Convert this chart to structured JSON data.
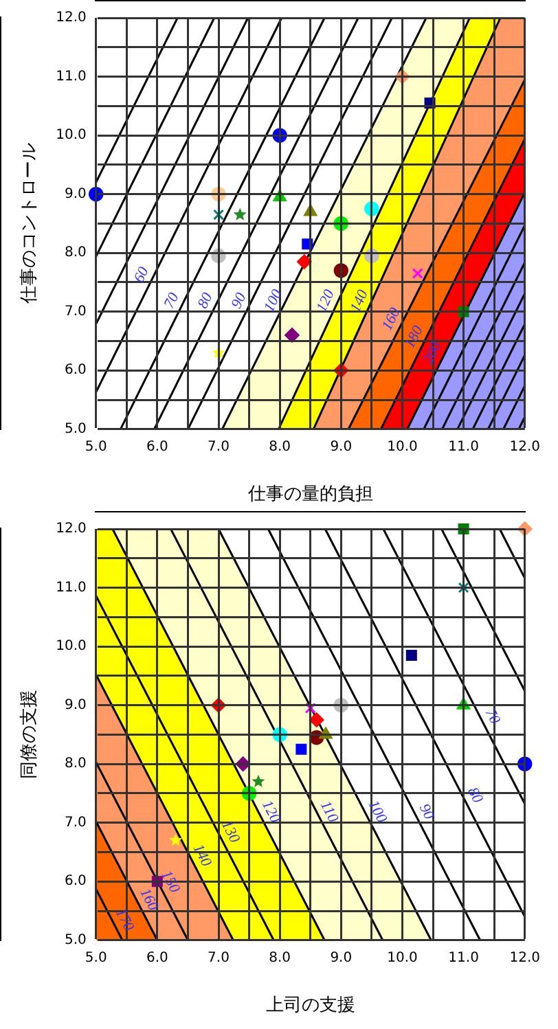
{
  "chart_data": [
    {
      "type": "scatter",
      "xlabel": "仕事の量的負担",
      "ylabel": "仕事のコントロール",
      "xlim": [
        5,
        12
      ],
      "ylim": [
        5,
        12
      ],
      "grid": true,
      "xticks": [
        {
          "value": 5,
          "label": "5.0"
        },
        {
          "value": 5.5,
          "label": null
        },
        {
          "value": 6,
          "label": "6.0"
        },
        {
          "value": 6.5,
          "label": null
        },
        {
          "value": 7,
          "label": "7.0"
        },
        {
          "value": 7.5,
          "label": null
        },
        {
          "value": 8,
          "label": "8.0"
        },
        {
          "value": 8.5,
          "label": null
        },
        {
          "value": 9,
          "label": "9.0"
        },
        {
          "value": 9.5,
          "label": null
        },
        {
          "value": 10,
          "label": "10.0"
        },
        {
          "value": 10.5,
          "label": null
        },
        {
          "value": 11,
          "label": "11.0"
        },
        {
          "value": 11.5,
          "label": null
        },
        {
          "value": 12,
          "label": "12.0"
        }
      ],
      "yticks": [
        {
          "value": 5,
          "label": "5.0"
        },
        {
          "value": 5.5,
          "label": null
        },
        {
          "value": 6,
          "label": "6.0"
        },
        {
          "value": 6.5,
          "label": null
        },
        {
          "value": 7,
          "label": "7.0"
        },
        {
          "value": 7.5,
          "label": null
        },
        {
          "value": 8,
          "label": "8.0"
        },
        {
          "value": 8.5,
          "label": null
        },
        {
          "value": 9,
          "label": "9.0"
        },
        {
          "value": 9.5,
          "label": null
        },
        {
          "value": 10,
          "label": "10.0"
        },
        {
          "value": 10.5,
          "label": null
        },
        {
          "value": 11,
          "label": "11.0"
        },
        {
          "value": 11.5,
          "label": null
        },
        {
          "value": 12,
          "label": "12.0"
        }
      ],
      "series": [
        {
          "type": "area",
          "name": "100",
          "x": [
            7.06,
            10.39,
            12
          ],
          "values": [
            5,
            12,
            12
          ],
          "color": "#ffffcc"
        },
        {
          "type": "area",
          "name": "120",
          "x": [
            7.98,
            11.1,
            12
          ],
          "values": [
            5,
            12,
            12
          ],
          "color": "#ffff00"
        },
        {
          "type": "area",
          "name": "140",
          "x": [
            8.55,
            11.6,
            12
          ],
          "values": [
            5,
            12,
            12
          ],
          "color": "#ff9966"
        },
        {
          "type": "area",
          "name": "160",
          "x": [
            9.12,
            12
          ],
          "values": [
            5,
            10.95
          ],
          "color": "#ff6600"
        },
        {
          "type": "area",
          "name": "180",
          "x": [
            9.65,
            12
          ],
          "values": [
            5,
            9.94
          ],
          "color": "#ff0000"
        },
        {
          "type": "area",
          "name": "200",
          "x": [
            10.08,
            12
          ],
          "values": [
            5,
            9.03
          ],
          "color": "#9999ff"
        },
        {
          "type": "line",
          "name": "60",
          "x": [
            5,
            8.03
          ],
          "values": [
            5.63,
            12
          ],
          "color": "#000000"
        },
        {
          "type": "line",
          "name": "70",
          "x": [
            5.4,
            8.73
          ],
          "values": [
            5,
            12
          ],
          "color": "#000000"
        },
        {
          "type": "line",
          "name": "80",
          "x": [
            5.95,
            9.28
          ],
          "values": [
            5,
            12
          ],
          "color": "#000000"
        },
        {
          "type": "line",
          "name": "90",
          "x": [
            6.5,
            9.83
          ],
          "values": [
            5,
            12
          ],
          "color": "#000000"
        },
        {
          "type": "line",
          "x": [
            5,
            6.33
          ],
          "values": [
            9.2,
            12
          ],
          "color": "#000000"
        },
        {
          "type": "line",
          "x": [
            5,
            6.93
          ],
          "values": [
            7.94,
            12
          ],
          "color": "#000000"
        },
        {
          "type": "line",
          "x": [
            5,
            7.48
          ],
          "values": [
            6.79,
            12
          ],
          "color": "#000000"
        },
        {
          "type": "line",
          "x": [
            10.35,
            12
          ],
          "values": [
            5,
            8.47
          ],
          "color": "#000000"
        },
        {
          "type": "line",
          "x": [
            10.65,
            12
          ],
          "values": [
            5,
            7.84
          ],
          "color": "#000000"
        },
        {
          "type": "line",
          "x": [
            10.9,
            12
          ],
          "values": [
            5,
            7.31
          ],
          "color": "#000000"
        },
        {
          "type": "line",
          "x": [
            11.15,
            12
          ],
          "values": [
            5,
            6.79
          ],
          "color": "#000000"
        },
        {
          "type": "line",
          "x": [
            11.4,
            12
          ],
          "values": [
            5,
            6.26
          ],
          "color": "#000000"
        },
        {
          "type": "line",
          "x": [
            11.65,
            12
          ],
          "values": [
            5,
            5.74
          ],
          "color": "#000000"
        },
        {
          "type": "line",
          "x": [
            11.9,
            12
          ],
          "values": [
            5,
            5.21
          ],
          "color": "#000000"
        },
        {
          "type": "scatter",
          "x": [
            8.0,
            5.0
          ],
          "values": [
            10.0,
            9.0
          ],
          "color": "#0000ff",
          "marker": "circle"
        },
        {
          "type": "scatter",
          "x": [
            10.45
          ],
          "values": [
            10.55
          ],
          "color": "#000080",
          "marker": "square"
        },
        {
          "type": "scatter",
          "x": [
            10.0
          ],
          "values": [
            11.0
          ],
          "color": "#ff9966",
          "marker": "diamond"
        },
        {
          "type": "scatter",
          "x": [
            7.0
          ],
          "values": [
            9.0
          ],
          "color": "#ffcc99",
          "marker": "circle"
        },
        {
          "type": "scatter",
          "x": [
            7.0
          ],
          "values": [
            8.65
          ],
          "color": "#008080",
          "marker": "cross"
        },
        {
          "type": "scatter",
          "x": [
            7.35
          ],
          "values": [
            8.65
          ],
          "color": "#228b22",
          "marker": "star"
        },
        {
          "type": "scatter",
          "x": [
            8.0
          ],
          "values": [
            8.95
          ],
          "color": "#00cc00",
          "marker": "triangle"
        },
        {
          "type": "scatter",
          "x": [
            8.5
          ],
          "values": [
            8.7
          ],
          "color": "#808000",
          "marker": "triangle"
        },
        {
          "type": "scatter",
          "x": [
            9.5
          ],
          "values": [
            8.75
          ],
          "color": "#00ffff",
          "marker": "circle"
        },
        {
          "type": "scatter",
          "x": [
            9.0
          ],
          "values": [
            8.5
          ],
          "color": "#00ee00",
          "marker": "circle"
        },
        {
          "type": "scatter",
          "x": [
            8.45
          ],
          "values": [
            8.15
          ],
          "color": "#0000ff",
          "marker": "square"
        },
        {
          "type": "scatter",
          "x": [
            8.4
          ],
          "values": [
            7.85
          ],
          "color": "#ff0000",
          "marker": "diamond"
        },
        {
          "type": "scatter",
          "x": [
            7.0,
            9.5
          ],
          "values": [
            7.95,
            7.95
          ],
          "color": "#c0c0c0",
          "marker": "circle"
        },
        {
          "type": "scatter",
          "x": [
            9.0
          ],
          "values": [
            7.7
          ],
          "color": "#800000",
          "marker": "circle"
        },
        {
          "type": "scatter",
          "x": [
            10.25
          ],
          "values": [
            7.65
          ],
          "color": "#ff00ff",
          "marker": "cross"
        },
        {
          "type": "scatter",
          "x": [
            8.2
          ],
          "values": [
            6.6
          ],
          "color": "#800080",
          "marker": "diamond"
        },
        {
          "type": "scatter",
          "x": [
            7.0
          ],
          "values": [
            6.3
          ],
          "color": "#ffff00",
          "marker": "star"
        },
        {
          "type": "scatter",
          "x": [
            9.0
          ],
          "values": [
            6.0
          ],
          "color": "#ff0000",
          "marker": "diamond"
        },
        {
          "type": "scatter",
          "x": [
            11.0
          ],
          "values": [
            7.0
          ],
          "color": "#008000",
          "marker": "square"
        }
      ]
    },
    {
      "type": "scatter",
      "xlabel": "上司の支援",
      "ylabel": "同僚の支援",
      "xlim": [
        5,
        12
      ],
      "ylim": [
        5,
        12
      ],
      "grid": true,
      "xticks": [
        {
          "value": 5,
          "label": "5.0"
        },
        {
          "value": 5.5,
          "label": null
        },
        {
          "value": 6,
          "label": "6.0"
        },
        {
          "value": 6.5,
          "label": null
        },
        {
          "value": 7,
          "label": "7.0"
        },
        {
          "value": 7.5,
          "label": null
        },
        {
          "value": 8,
          "label": "8.0"
        },
        {
          "value": 8.5,
          "label": null
        },
        {
          "value": 9,
          "label": "9.0"
        },
        {
          "value": 9.5,
          "label": null
        },
        {
          "value": 10,
          "label": "10.0"
        },
        {
          "value": 10.5,
          "label": null
        },
        {
          "value": 11,
          "label": "11.0"
        },
        {
          "value": 11.5,
          "label": null
        },
        {
          "value": 12,
          "label": "12.0"
        }
      ],
      "yticks": [
        {
          "value": 5,
          "label": "5.0"
        },
        {
          "value": 5.5,
          "label": null
        },
        {
          "value": 6,
          "label": "6.0"
        },
        {
          "value": 6.5,
          "label": null
        },
        {
          "value": 7,
          "label": "7.0"
        },
        {
          "value": 7.5,
          "label": null
        },
        {
          "value": 8,
          "label": "8.0"
        },
        {
          "value": 8.5,
          "label": null
        },
        {
          "value": 9,
          "label": "9.0"
        },
        {
          "value": 9.5,
          "label": null
        },
        {
          "value": 10,
          "label": "10.0"
        },
        {
          "value": 10.5,
          "label": null
        },
        {
          "value": 11,
          "label": "11.0"
        },
        {
          "value": 11.5,
          "label": null
        },
        {
          "value": 12,
          "label": "12.0"
        }
      ],
      "series": [
        {
          "type": "area",
          "name": "100",
          "x": [
            5,
            7.0,
            10.47
          ],
          "values": [
            12,
            12,
            5
          ],
          "color": "#ffffcc"
        },
        {
          "type": "area",
          "name": "120",
          "x": [
            5,
            5.27,
            8.73
          ],
          "values": [
            12,
            12,
            5
          ],
          "color": "#ffff00"
        },
        {
          "type": "area",
          "name": "140",
          "x": [
            5,
            7.24
          ],
          "values": [
            9.52,
            5
          ],
          "color": "#ff9966"
        },
        {
          "type": "area",
          "name": "160",
          "x": [
            5,
            6.0
          ],
          "values": [
            7.02,
            5
          ],
          "color": "#ff6600"
        },
        {
          "type": "line",
          "name": "170",
          "x": [
            5,
            5.43
          ],
          "values": [
            5.87,
            5
          ],
          "color": "#000000"
        },
        {
          "type": "line",
          "name": "150",
          "x": [
            5,
            6.5
          ],
          "values": [
            8.03,
            5
          ],
          "color": "#000000"
        },
        {
          "type": "line",
          "name": "130",
          "x": [
            5,
            7.9
          ],
          "values": [
            10.86,
            5
          ],
          "color": "#000000"
        },
        {
          "type": "line",
          "name": "110",
          "x": [
            6.22,
            9.68
          ],
          "values": [
            12,
            5
          ],
          "color": "#000000"
        },
        {
          "type": "line",
          "name": "90",
          "x": [
            7.81,
            11.27
          ],
          "values": [
            12,
            5
          ],
          "color": "#000000"
        },
        {
          "type": "line",
          "name": "80",
          "x": [
            8.74,
            12
          ],
          "values": [
            12,
            5.4
          ],
          "color": "#000000"
        },
        {
          "type": "line",
          "name": "70",
          "x": [
            9.69,
            12
          ],
          "values": [
            12,
            7.32
          ],
          "color": "#000000"
        },
        {
          "type": "line",
          "x": [
            10.64,
            12
          ],
          "values": [
            12,
            9.24
          ],
          "color": "#000000"
        },
        {
          "type": "line",
          "x": [
            11.59,
            12
          ],
          "values": [
            12,
            11.16
          ],
          "color": "#000000"
        },
        {
          "type": "scatter",
          "x": [
            11.0
          ],
          "values": [
            12.0
          ],
          "color": "#008000",
          "marker": "square"
        },
        {
          "type": "scatter",
          "x": [
            12.0
          ],
          "values": [
            12.0
          ],
          "color": "#ff9966",
          "marker": "diamond"
        },
        {
          "type": "scatter",
          "x": [
            11.0
          ],
          "values": [
            11.0
          ],
          "color": "#008080",
          "marker": "cross"
        },
        {
          "type": "scatter",
          "x": [
            10.15
          ],
          "values": [
            9.85
          ],
          "color": "#000080",
          "marker": "square"
        },
        {
          "type": "scatter",
          "x": [
            11.0
          ],
          "values": [
            9.0
          ],
          "color": "#00cc00",
          "marker": "triangle"
        },
        {
          "type": "scatter",
          "x": [
            12.0
          ],
          "values": [
            8.0
          ],
          "color": "#0000ff",
          "marker": "circle"
        },
        {
          "type": "scatter",
          "x": [
            7.0
          ],
          "values": [
            9.0
          ],
          "color": "#ff0000",
          "marker": "diamond"
        },
        {
          "type": "scatter",
          "x": [
            8.5
          ],
          "values": [
            8.95
          ],
          "color": "#ff00ff",
          "marker": "cross"
        },
        {
          "type": "scatter",
          "x": [
            9.0
          ],
          "values": [
            9.0
          ],
          "color": "#c0c0c0",
          "marker": "circle"
        },
        {
          "type": "scatter",
          "x": [
            8.6
          ],
          "values": [
            8.75
          ],
          "color": "#ff0000",
          "marker": "diamond"
        },
        {
          "type": "scatter",
          "x": [
            8.0
          ],
          "values": [
            8.5
          ],
          "color": "#00ffff",
          "marker": "circle"
        },
        {
          "type": "scatter",
          "x": [
            8.6
          ],
          "values": [
            8.45
          ],
          "color": "#800000",
          "marker": "circle"
        },
        {
          "type": "scatter",
          "x": [
            8.75
          ],
          "values": [
            8.5
          ],
          "color": "#808000",
          "marker": "triangle"
        },
        {
          "type": "scatter",
          "x": [
            8.35
          ],
          "values": [
            8.25
          ],
          "color": "#0000ff",
          "marker": "square"
        },
        {
          "type": "scatter",
          "x": [
            7.4
          ],
          "values": [
            8.0
          ],
          "color": "#800080",
          "marker": "diamond"
        },
        {
          "type": "scatter",
          "x": [
            7.65
          ],
          "values": [
            7.7
          ],
          "color": "#228b22",
          "marker": "star"
        },
        {
          "type": "scatter",
          "x": [
            7.5
          ],
          "values": [
            7.5
          ],
          "color": "#00ee00",
          "marker": "circle"
        },
        {
          "type": "scatter",
          "x": [
            6.3
          ],
          "values": [
            6.7
          ],
          "color": "#ffff00",
          "marker": "star"
        },
        {
          "type": "scatter",
          "x": [
            6.0
          ],
          "values": [
            6.0
          ],
          "color": "#800080",
          "marker": "square"
        }
      ]
    }
  ]
}
